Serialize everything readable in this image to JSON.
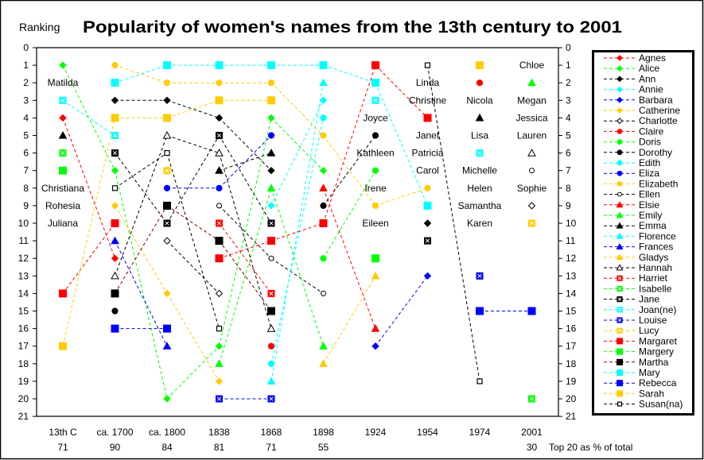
{
  "chart_data": {
    "type": "line",
    "title": "Popularity of women's names from the 13th century to 2001",
    "ylabel": "Ranking",
    "xlabel": "",
    "ylim": [
      0,
      21
    ],
    "y_inverted": true,
    "y_ticks": [
      0,
      1,
      2,
      3,
      4,
      5,
      6,
      7,
      8,
      9,
      10,
      11,
      12,
      13,
      14,
      15,
      16,
      17,
      18,
      19,
      20,
      21
    ],
    "grid": false,
    "legend_position": "right",
    "categories": [
      "13th C",
      "ca. 1700",
      "ca. 1800",
      "1838",
      "1868",
      "1898",
      "1924",
      "1954",
      "1974",
      "2001"
    ],
    "top20_percent": [
      "71",
      "90",
      "84",
      "81",
      "71",
      "55",
      null,
      null,
      null,
      "30"
    ],
    "top20_label": "Top 20 as % of total",
    "series": [
      {
        "name": "Agnes",
        "color": "#FF0000",
        "marker": "diamond",
        "values": [
          4,
          12,
          null,
          null,
          null,
          null,
          null,
          null,
          null,
          null
        ]
      },
      {
        "name": "Alice",
        "color": "#00FF00",
        "marker": "diamond",
        "values": [
          1,
          7,
          20,
          17,
          4,
          7,
          null,
          null,
          null,
          null
        ]
      },
      {
        "name": "Ann",
        "color": "#000000",
        "marker": "diamond",
        "values": [
          null,
          3,
          3,
          4,
          7,
          null,
          null,
          10,
          null,
          null
        ]
      },
      {
        "name": "Annie",
        "color": "#00FFFF",
        "marker": "diamond",
        "values": [
          null,
          null,
          null,
          null,
          9,
          3,
          null,
          null,
          null,
          null
        ]
      },
      {
        "name": "Barbara",
        "color": "#0000FF",
        "marker": "diamond",
        "values": [
          null,
          null,
          null,
          null,
          null,
          null,
          17,
          13,
          null,
          null
        ]
      },
      {
        "name": "Catherine",
        "color": "#FFCC00",
        "marker": "diamond",
        "values": [
          null,
          9,
          14,
          19,
          null,
          null,
          null,
          null,
          null,
          null
        ]
      },
      {
        "name": "Charlotte",
        "color": "#000000",
        "marker": "open-diamond",
        "values": [
          null,
          null,
          11,
          14,
          null,
          null,
          null,
          null,
          null,
          9
        ]
      },
      {
        "name": "Claire",
        "color": "#FF0000",
        "marker": "circle",
        "values": [
          null,
          null,
          null,
          null,
          17,
          null,
          null,
          null,
          2,
          null
        ]
      },
      {
        "name": "Doris",
        "color": "#00FF00",
        "marker": "circle",
        "values": [
          null,
          null,
          null,
          null,
          null,
          12,
          7,
          null,
          null,
          null
        ]
      },
      {
        "name": "Dorothy",
        "color": "#000000",
        "marker": "circle",
        "values": [
          null,
          15,
          null,
          null,
          null,
          9,
          5,
          null,
          null,
          null
        ]
      },
      {
        "name": "Edith",
        "color": "#00FFFF",
        "marker": "circle",
        "values": [
          null,
          null,
          null,
          null,
          18,
          4,
          null,
          null,
          null,
          null
        ]
      },
      {
        "name": "Eliza",
        "color": "#0000FF",
        "marker": "circle",
        "values": [
          null,
          null,
          8,
          8,
          5,
          null,
          null,
          null,
          null,
          null
        ]
      },
      {
        "name": "Elizabeth",
        "color": "#FFCC00",
        "marker": "circle",
        "values": [
          null,
          1,
          2,
          2,
          2,
          5,
          9,
          8,
          null,
          null
        ]
      },
      {
        "name": "Ellen",
        "color": "#000000",
        "marker": "open-circle",
        "values": [
          null,
          null,
          null,
          9,
          12,
          14,
          null,
          null,
          null,
          7
        ]
      },
      {
        "name": "Elsie",
        "color": "#FF0000",
        "marker": "triangle",
        "values": [
          null,
          null,
          null,
          null,
          null,
          8,
          16,
          null,
          null,
          null
        ]
      },
      {
        "name": "Emily",
        "color": "#00FF00",
        "marker": "triangle",
        "values": [
          null,
          null,
          null,
          18,
          8,
          17,
          null,
          null,
          null,
          2
        ]
      },
      {
        "name": "Emma",
        "color": "#000000",
        "marker": "triangle",
        "values": [
          5,
          null,
          null,
          7,
          6,
          null,
          null,
          null,
          4,
          null
        ]
      },
      {
        "name": "Florence",
        "color": "#00FFFF",
        "marker": "triangle",
        "values": [
          null,
          null,
          null,
          null,
          19,
          2,
          null,
          null,
          null,
          null
        ]
      },
      {
        "name": "Frances",
        "color": "#0000FF",
        "marker": "triangle",
        "values": [
          null,
          11,
          17,
          null,
          null,
          null,
          null,
          null,
          null,
          null
        ]
      },
      {
        "name": "Gladys",
        "color": "#FFCC00",
        "marker": "triangle",
        "values": [
          null,
          null,
          null,
          null,
          null,
          18,
          13,
          null,
          null,
          null
        ]
      },
      {
        "name": "Hannah",
        "color": "#000000",
        "marker": "open-triangle",
        "values": [
          null,
          13,
          5,
          6,
          16,
          null,
          null,
          null,
          null,
          6
        ]
      },
      {
        "name": "Harriet",
        "color": "#FF0000",
        "marker": "xbox",
        "values": [
          null,
          null,
          null,
          10,
          14,
          null,
          null,
          null,
          null,
          null
        ]
      },
      {
        "name": "Isabelle",
        "color": "#00FF00",
        "marker": "xbox",
        "values": [
          6,
          null,
          null,
          null,
          null,
          null,
          null,
          null,
          null,
          20
        ]
      },
      {
        "name": "Jane",
        "color": "#000000",
        "marker": "xbox",
        "values": [
          null,
          6,
          10,
          5,
          10,
          null,
          null,
          11,
          null,
          null
        ]
      },
      {
        "name": "Joan(ne)",
        "color": "#00FFFF",
        "marker": "xbox",
        "values": [
          3,
          5,
          null,
          null,
          null,
          null,
          3,
          null,
          6,
          null
        ]
      },
      {
        "name": "Louise",
        "color": "#0000FF",
        "marker": "xbox",
        "values": [
          null,
          null,
          null,
          20,
          20,
          null,
          null,
          null,
          13,
          null
        ]
      },
      {
        "name": "Lucy",
        "color": "#FFCC00",
        "marker": "xbox",
        "values": [
          null,
          null,
          7,
          null,
          null,
          null,
          null,
          null,
          null,
          10
        ]
      },
      {
        "name": "Margaret",
        "color": "#FF0000",
        "marker": "square",
        "values": [
          14,
          10,
          null,
          12,
          11,
          10,
          1,
          4,
          null,
          null
        ]
      },
      {
        "name": "Margery",
        "color": "#00FF00",
        "marker": "square",
        "values": [
          7,
          null,
          null,
          null,
          null,
          null,
          12,
          null,
          null,
          null
        ]
      },
      {
        "name": "Martha",
        "color": "#000000",
        "line_color": "#800000",
        "marker": "square",
        "values": [
          null,
          14,
          9,
          11,
          15,
          null,
          null,
          null,
          null,
          null
        ]
      },
      {
        "name": "Mary",
        "color": "#00FFFF",
        "marker": "square",
        "values": [
          null,
          2,
          1,
          1,
          1,
          1,
          2,
          9,
          null,
          null
        ]
      },
      {
        "name": "Rebecca",
        "color": "#0000FF",
        "marker": "square",
        "values": [
          null,
          16,
          16,
          null,
          null,
          null,
          null,
          null,
          15,
          15
        ]
      },
      {
        "name": "Sarah",
        "color": "#FFCC00",
        "marker": "square",
        "values": [
          17,
          4,
          4,
          3,
          3,
          null,
          null,
          null,
          1,
          null
        ]
      },
      {
        "name": "Susan(na)",
        "color": "#000000",
        "marker": "open-square",
        "values": [
          null,
          8,
          6,
          16,
          null,
          null,
          null,
          1,
          19,
          null
        ]
      }
    ],
    "text_labels": [
      {
        "category": "13th C",
        "rank": 2,
        "name": "Matilda"
      },
      {
        "category": "13th C",
        "rank": 8,
        "name": "Christiana"
      },
      {
        "category": "13th C",
        "rank": 9,
        "name": "Rohesia"
      },
      {
        "category": "13th C",
        "rank": 10,
        "name": "Juliana"
      },
      {
        "category": "1924",
        "rank": 4,
        "name": "Joyce"
      },
      {
        "category": "1924",
        "rank": 6,
        "name": "Kathleen"
      },
      {
        "category": "1924",
        "rank": 8,
        "name": "Irene"
      },
      {
        "category": "1924",
        "rank": 10,
        "name": "Eileen"
      },
      {
        "category": "1954",
        "rank": 2,
        "name": "Linda"
      },
      {
        "category": "1954",
        "rank": 3,
        "name": "Christine"
      },
      {
        "category": "1954",
        "rank": 5,
        "name": "Janet"
      },
      {
        "category": "1954",
        "rank": 6,
        "name": "Patricia"
      },
      {
        "category": "1954",
        "rank": 7,
        "name": "Carol"
      },
      {
        "category": "1974",
        "rank": 3,
        "name": "Nicola"
      },
      {
        "category": "1974",
        "rank": 5,
        "name": "Lisa"
      },
      {
        "category": "1974",
        "rank": 7,
        "name": "Michelle"
      },
      {
        "category": "1974",
        "rank": 8,
        "name": "Helen"
      },
      {
        "category": "1974",
        "rank": 9,
        "name": "Samantha"
      },
      {
        "category": "1974",
        "rank": 10,
        "name": "Karen"
      },
      {
        "category": "2001",
        "rank": 1,
        "name": "Chloe"
      },
      {
        "category": "2001",
        "rank": 3,
        "name": "Megan"
      },
      {
        "category": "2001",
        "rank": 4,
        "name": "Jessica"
      },
      {
        "category": "2001",
        "rank": 5,
        "name": "Lauren"
      },
      {
        "category": "2001",
        "rank": 8,
        "name": "Sophie"
      }
    ]
  }
}
